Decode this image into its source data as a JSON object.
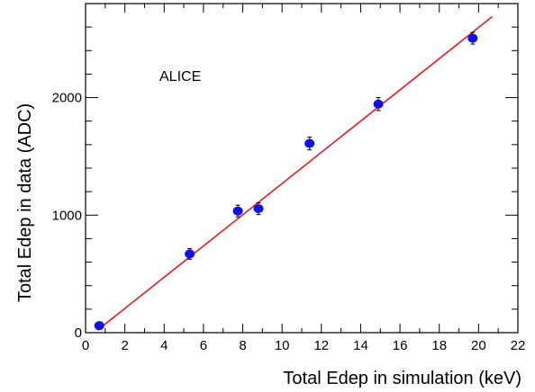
{
  "chart_data": {
    "type": "scatter",
    "title": "",
    "annotation": "ALICE",
    "xlabel": "Total Edep in simulation (keV)",
    "ylabel": "Total Edep in data (ADC)",
    "xlim": [
      0,
      22
    ],
    "ylim": [
      0,
      2800
    ],
    "xticks": [
      0,
      2,
      4,
      6,
      8,
      10,
      12,
      14,
      16,
      18,
      20,
      22
    ],
    "yticks": [
      0,
      1000,
      2000
    ],
    "grid": false,
    "colors": {
      "points": "#1010ee",
      "fit": "#e31a1c",
      "error_bars": "#000000"
    },
    "points": [
      {
        "x": 0.7,
        "y": 60,
        "err": 25
      },
      {
        "x": 5.3,
        "y": 670,
        "err": 45
      },
      {
        "x": 7.75,
        "y": 1035,
        "err": 50
      },
      {
        "x": 8.8,
        "y": 1055,
        "err": 50
      },
      {
        "x": 11.4,
        "y": 1610,
        "err": 55
      },
      {
        "x": 14.9,
        "y": 1945,
        "err": 55
      },
      {
        "x": 19.7,
        "y": 2505,
        "err": 50
      }
    ],
    "fit_line": {
      "x0": 0.6,
      "y0": 20,
      "x1": 20.7,
      "y1": 2690
    }
  }
}
